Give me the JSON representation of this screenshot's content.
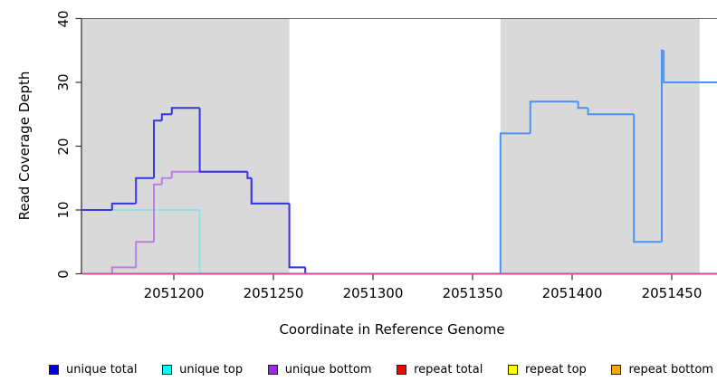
{
  "chart_data": {
    "type": "line",
    "subtype": "step-coverage-plot",
    "title": "",
    "xlabel": "Coordinate in Reference Genome",
    "ylabel": "Read Coverage Depth",
    "xlim": [
      2051154,
      2051473
    ],
    "ylim": [
      0,
      40
    ],
    "xticks": [
      2051200,
      2051250,
      2051300,
      2051350,
      2051400,
      2051450
    ],
    "yticks": [
      0,
      10,
      20,
      30,
      40
    ],
    "grid": false,
    "legend_position": "bottom",
    "background_color": "#FFFFFF",
    "shaded_region_color": "#D9D9D9",
    "shaded_regions": [
      {
        "from": 2051154,
        "to": 2051258
      },
      {
        "from": 2051364,
        "to": 2051464
      }
    ],
    "series": [
      {
        "name": "repeat top",
        "color": "#FFFF00",
        "points": [
          [
            2051154,
            0
          ],
          [
            2051473,
            0
          ]
        ]
      },
      {
        "name": "repeat bottom",
        "color": "#FFA040",
        "points": [
          [
            2051154,
            0
          ],
          [
            2051473,
            0
          ]
        ]
      },
      {
        "name": "unique top",
        "color": "#8FE2E8",
        "points": [
          [
            2051154,
            10
          ],
          [
            2051213,
            0
          ],
          [
            2051473,
            0
          ]
        ]
      },
      {
        "name": "unique bottom",
        "color": "#BD7EE3",
        "points": [
          [
            2051154,
            0
          ],
          [
            2051169,
            1
          ],
          [
            2051181,
            5
          ],
          [
            2051190,
            14
          ],
          [
            2051194,
            15
          ],
          [
            2051199,
            16
          ],
          [
            2051237,
            15
          ],
          [
            2051239,
            11
          ],
          [
            2051258,
            1
          ],
          [
            2051266,
            0
          ],
          [
            2051473,
            0
          ]
        ]
      },
      {
        "name": "unique total",
        "color": "#3636E4",
        "color_segments": [
          {
            "from": 2051364,
            "color": "#4B93F2"
          }
        ],
        "points": [
          [
            2051154,
            10
          ],
          [
            2051169,
            11
          ],
          [
            2051181,
            15
          ],
          [
            2051190,
            24
          ],
          [
            2051194,
            25
          ],
          [
            2051199,
            26
          ],
          [
            2051213,
            16
          ],
          [
            2051237,
            15
          ],
          [
            2051239,
            11
          ],
          [
            2051258,
            1
          ],
          [
            2051266,
            0
          ],
          [
            2051364,
            22
          ],
          [
            2051379,
            27
          ],
          [
            2051403,
            26
          ],
          [
            2051408,
            25
          ],
          [
            2051431,
            5
          ],
          [
            2051445,
            35
          ],
          [
            2051446,
            30
          ],
          [
            2051473,
            30
          ]
        ]
      },
      {
        "name": "repeat total",
        "color": "#DB4A66",
        "color_segments": [
          {
            "to": 2051169,
            "color": "#CE4E9A"
          },
          {
            "from": 2051169,
            "to": 2051213,
            "color": "none"
          },
          {
            "from": 2051213,
            "to": 2051266,
            "color": "#98DCA8"
          },
          {
            "from": 2051266,
            "to": 2051364,
            "color": "none"
          }
        ],
        "points": [
          [
            2051154,
            0
          ],
          [
            2051473,
            0
          ]
        ]
      }
    ],
    "legend": [
      {
        "label": "unique total",
        "color": "#0000EE"
      },
      {
        "label": "unique top",
        "color": "#00FFFF"
      },
      {
        "label": "unique bottom",
        "color": "#A125F0"
      },
      {
        "label": "repeat total",
        "color": "#FF0000"
      },
      {
        "label": "repeat top",
        "color": "#FFFF00"
      },
      {
        "label": "repeat bottom",
        "color": "#FFA500"
      }
    ]
  }
}
